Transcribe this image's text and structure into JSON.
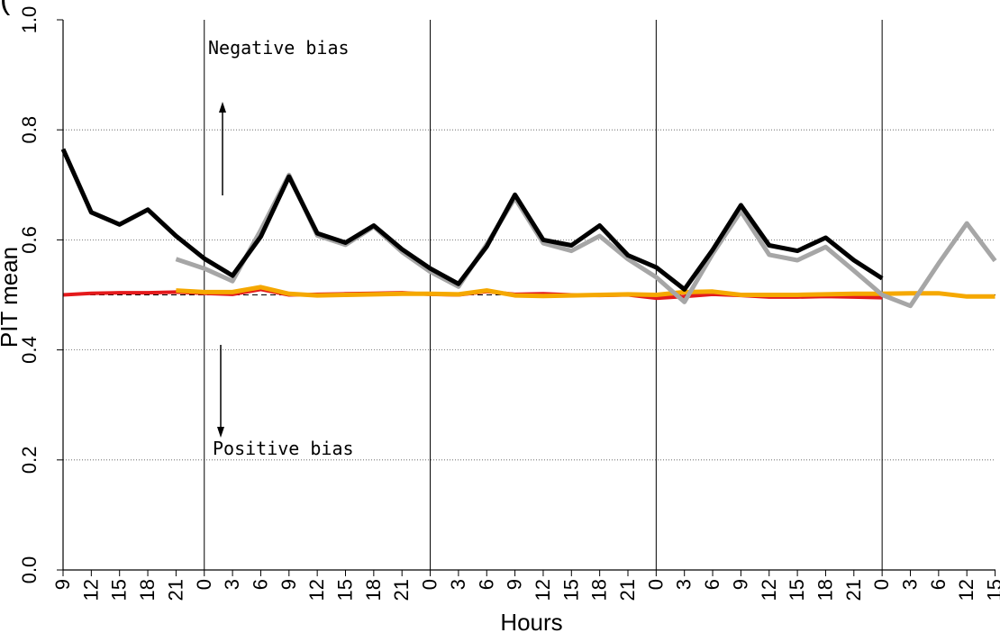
{
  "chart_data": {
    "type": "line",
    "panel_tag": "(",
    "xlabel": "Hours",
    "ylabel": "PIT mean",
    "ylim": [
      0.0,
      1.0
    ],
    "yticks": [
      "0.0",
      "0.2",
      "0.4",
      "0.6",
      "0.8",
      "1.0"
    ],
    "grid": "horizontal dotted",
    "day_separators_at_index": [
      4,
      12,
      20,
      28
    ],
    "x_categories": [
      "9",
      "12",
      "15",
      "18",
      "21",
      "0",
      "3",
      "6",
      "9",
      "12",
      "15",
      "18",
      "21",
      "0",
      "3",
      "6",
      "9",
      "12",
      "15",
      "18",
      "21",
      "0",
      "3",
      "6",
      "9",
      "12",
      "15",
      "18",
      "21",
      "0",
      "3",
      "6",
      "12",
      "15"
    ],
    "reference_line": 0.5,
    "series": [
      {
        "color": "#000000",
        "values": [
          0.765,
          0.65,
          0.628,
          0.655,
          0.607,
          0.566,
          0.535,
          0.606,
          0.715,
          0.612,
          0.595,
          0.626,
          0.583,
          0.548,
          0.52,
          0.588,
          0.682,
          0.6,
          0.59,
          0.626,
          0.572,
          0.55,
          0.51,
          0.582,
          0.663,
          0.59,
          0.58,
          0.604,
          0.563,
          0.53
        ]
      },
      {
        "color": "#a6a6a6",
        "values": [
          null,
          null,
          null,
          null,
          0.565,
          0.548,
          0.525,
          0.618,
          0.718,
          0.608,
          0.591,
          0.624,
          0.578,
          0.542,
          0.515,
          0.592,
          0.676,
          0.594,
          0.58,
          0.607,
          0.565,
          0.532,
          0.487,
          0.575,
          0.652,
          0.573,
          0.563,
          0.587,
          0.544,
          0.5,
          0.48,
          0.557,
          0.63,
          0.562
        ]
      },
      {
        "color": "#e41a1c",
        "values": [
          0.5,
          0.503,
          0.504,
          0.504,
          0.505,
          0.503,
          0.501,
          0.51,
          0.5,
          0.501,
          0.502,
          0.503,
          0.504,
          0.501,
          0.5,
          0.506,
          0.501,
          0.502,
          0.5,
          0.499,
          0.5,
          0.494,
          0.497,
          0.501,
          0.499,
          0.496,
          0.496,
          0.497,
          0.496,
          0.495
        ]
      },
      {
        "color": "#f5a800",
        "values": [
          null,
          null,
          null,
          null,
          0.508,
          0.505,
          0.505,
          0.514,
          0.502,
          0.499,
          0.5,
          0.501,
          0.502,
          0.502,
          0.501,
          0.508,
          0.499,
          0.498,
          0.499,
          0.5,
          0.501,
          0.5,
          0.505,
          0.506,
          0.5,
          0.5,
          0.5,
          0.501,
          0.502,
          0.502,
          0.503,
          0.503,
          0.497,
          0.497
        ]
      }
    ],
    "annotations": {
      "negative_bias": "Negative bias",
      "positive_bias": "Positive bias"
    }
  }
}
